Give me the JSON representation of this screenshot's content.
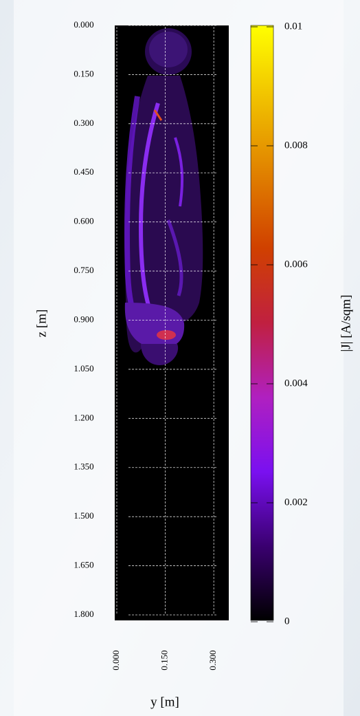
{
  "chart_data": {
    "type": "heatmap",
    "xlabel": "y [m]",
    "ylabel": "z [m]",
    "xlim": [
      0,
      0.34
    ],
    "ylim": [
      0,
      1.8
    ],
    "y_inverted": true,
    "grid": true,
    "xticks": [
      {
        "value": 0,
        "label": "0.000"
      },
      {
        "value": 0.15,
        "label": "0.150"
      },
      {
        "value": 0.3,
        "label": "0.300"
      }
    ],
    "yticks": [
      {
        "value": 0,
        "label": "0.000"
      },
      {
        "value": 0.15,
        "label": "0.150"
      },
      {
        "value": 0.3,
        "label": "0.300"
      },
      {
        "value": 0.45,
        "label": "0.450"
      },
      {
        "value": 0.6,
        "label": "0.600"
      },
      {
        "value": 0.75,
        "label": "0.750"
      },
      {
        "value": 0.9,
        "label": "0.900"
      },
      {
        "value": 1.05,
        "label": "1.050"
      },
      {
        "value": 1.2,
        "label": "1.200"
      },
      {
        "value": 1.35,
        "label": "1.350"
      },
      {
        "value": 1.5,
        "label": "1.500"
      },
      {
        "value": 1.65,
        "label": "1.650"
      },
      {
        "value": 1.8,
        "label": "1.800"
      }
    ],
    "colorbar": {
      "label": "|J| [A/sqm]",
      "lim": [
        0,
        0.01
      ],
      "ticks": [
        0,
        0.002,
        0.004,
        0.006,
        0.008,
        0.01
      ],
      "colormap": [
        "#000000",
        "#3a0070",
        "#7a10f0",
        "#b020c0",
        "#c02040",
        "#d04000",
        "#e08000",
        "#f0c000",
        "#ffff00"
      ]
    }
  }
}
